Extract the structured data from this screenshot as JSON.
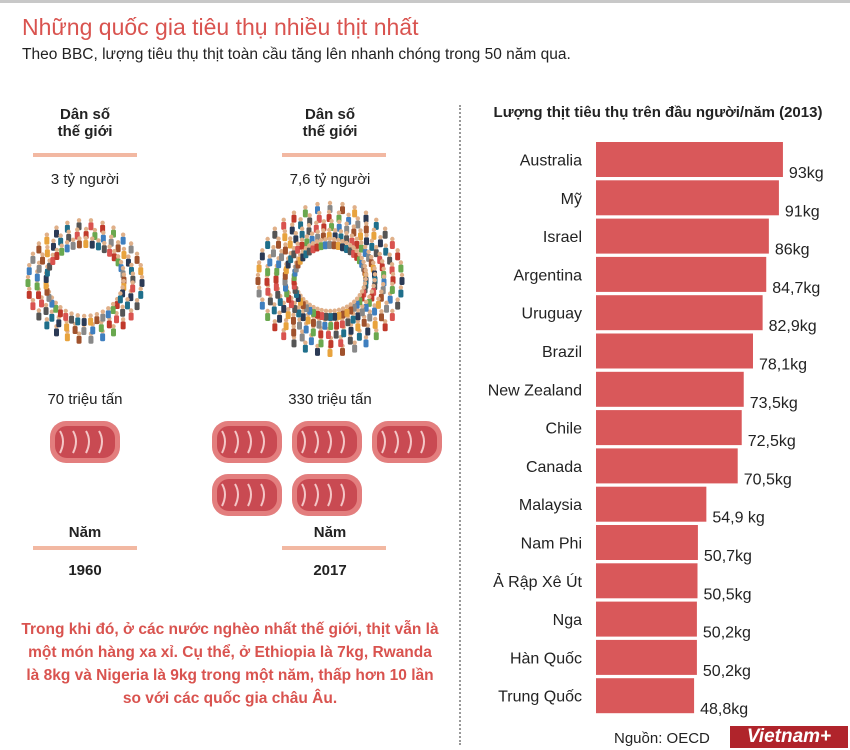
{
  "title": "Những quốc gia tiêu thụ nhiều thịt nhất",
  "subtitle": "Theo BBC, lượng tiêu thụ thịt toàn cầu tăng lên nhanh chóng trong 50 năm qua.",
  "left": {
    "columns": [
      {
        "pop_label_1": "Dân số",
        "pop_label_2": "thế giới",
        "population": "3 tỷ người",
        "meat": "70 triệu tấn",
        "meat_icons": 1,
        "year_label": "Năm",
        "year": "1960"
      },
      {
        "pop_label_1": "Dân số",
        "pop_label_2": "thế giới",
        "population": "7,6 tỷ người",
        "meat": "330 triệu tấn",
        "meat_icons": 5,
        "year_label": "Năm",
        "year": "2017"
      }
    ],
    "note": "Trong khi đó, ở các nước nghèo nhất thế giới, thịt vẫn là một món hàng xa xỉ. Cụ thể, ở Ethiopia là 7kg, Rwanda là 8kg và Nigeria là 9kg trong một năm, thấp hơn 10 lần so với các quốc gia châu Âu."
  },
  "chart_data": {
    "type": "bar",
    "orientation": "horizontal",
    "title": "Lượng thịt tiêu thụ trên đầu người/năm (2013)",
    "categories": [
      "Australia",
      "Mỹ",
      "Israel",
      "Argentina",
      "Uruguay",
      "Brazil",
      "New Zealand",
      "Chile",
      "Canada",
      "Malaysia",
      "Nam Phi",
      "Ả Rập Xê Út",
      "Nga",
      "Hàn Quốc",
      "Trung Quốc"
    ],
    "values": [
      93,
      91,
      86,
      84.7,
      82.9,
      78.1,
      73.5,
      72.5,
      70.5,
      54.9,
      50.7,
      50.5,
      50.2,
      50.2,
      48.8
    ],
    "data_labels": [
      "93kg",
      "91kg",
      "86kg",
      "84,7kg",
      "82,9kg",
      "78,1kg",
      "73,5kg",
      "72,5kg",
      "70,5kg",
      "54,9 kg",
      "50,7kg",
      "50,5kg",
      "50,2kg",
      "50,2kg",
      "48,8kg"
    ],
    "unit": "kg",
    "bar_color": "#d9585a",
    "grid": false
  },
  "source": "Nguồn: OECD",
  "logo": "Vietnam+",
  "colors": {
    "accent": "#d9534f",
    "rule": "#f2b8a2"
  }
}
